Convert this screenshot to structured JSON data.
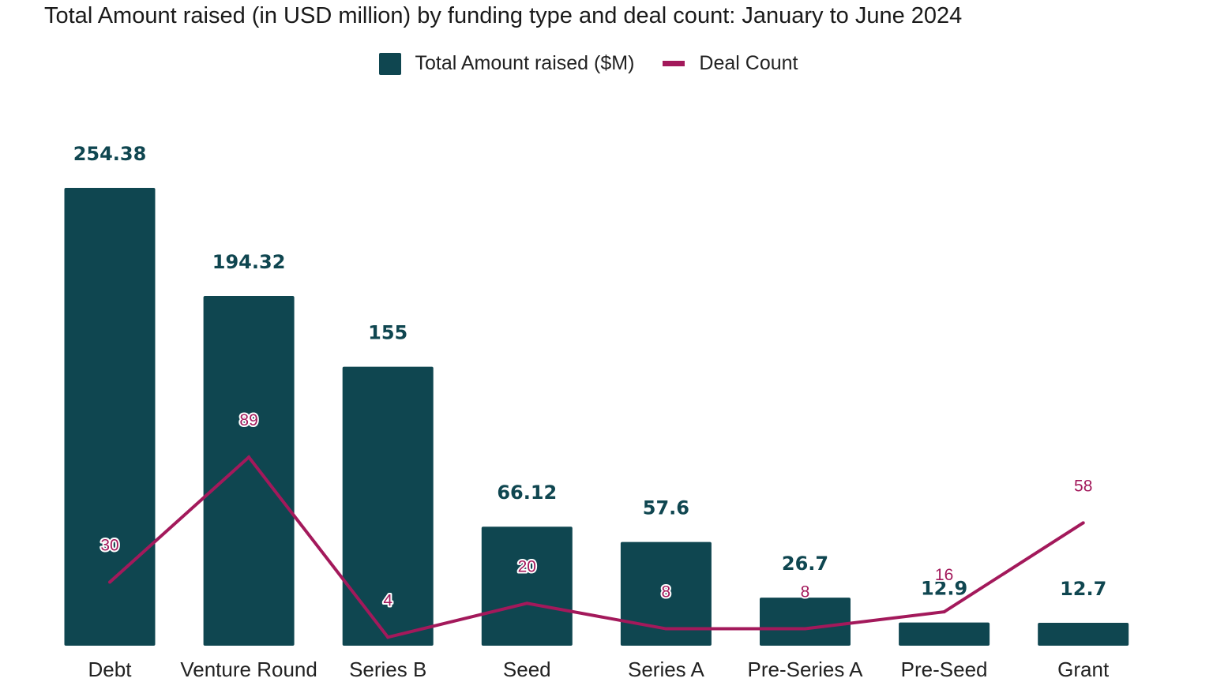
{
  "chart_data": {
    "type": "bar",
    "title": "Total Amount raised (in USD million) by funding type and deal count: January to June 2024",
    "categories": [
      "Debt",
      "Venture Round",
      "Series B",
      "Seed",
      "Series A",
      "Pre-Series A",
      "Pre-Seed",
      "Grant"
    ],
    "series": [
      {
        "name": "Total Amount raised ($M)",
        "type": "bar",
        "values": [
          254.38,
          194.32,
          155,
          66.12,
          57.6,
          26.7,
          12.9,
          12.7
        ],
        "labels": [
          "254.38",
          "194.32",
          "155",
          "66.12",
          "57.6",
          "26.7",
          "12.9",
          "12.7"
        ],
        "color": "#0f4650"
      },
      {
        "name": "Deal Count",
        "type": "line",
        "values": [
          30,
          89,
          4,
          20,
          8,
          8,
          16,
          58
        ],
        "labels": [
          "30",
          "89",
          "4",
          "20",
          "8",
          "8",
          "16",
          "58"
        ],
        "color": "#a3195b"
      }
    ],
    "xlabel": "",
    "ylabel": "",
    "ylim": [
      0,
      254.38
    ],
    "y2lim": [
      0,
      120
    ],
    "grid": false,
    "legend_position": "top-center"
  }
}
